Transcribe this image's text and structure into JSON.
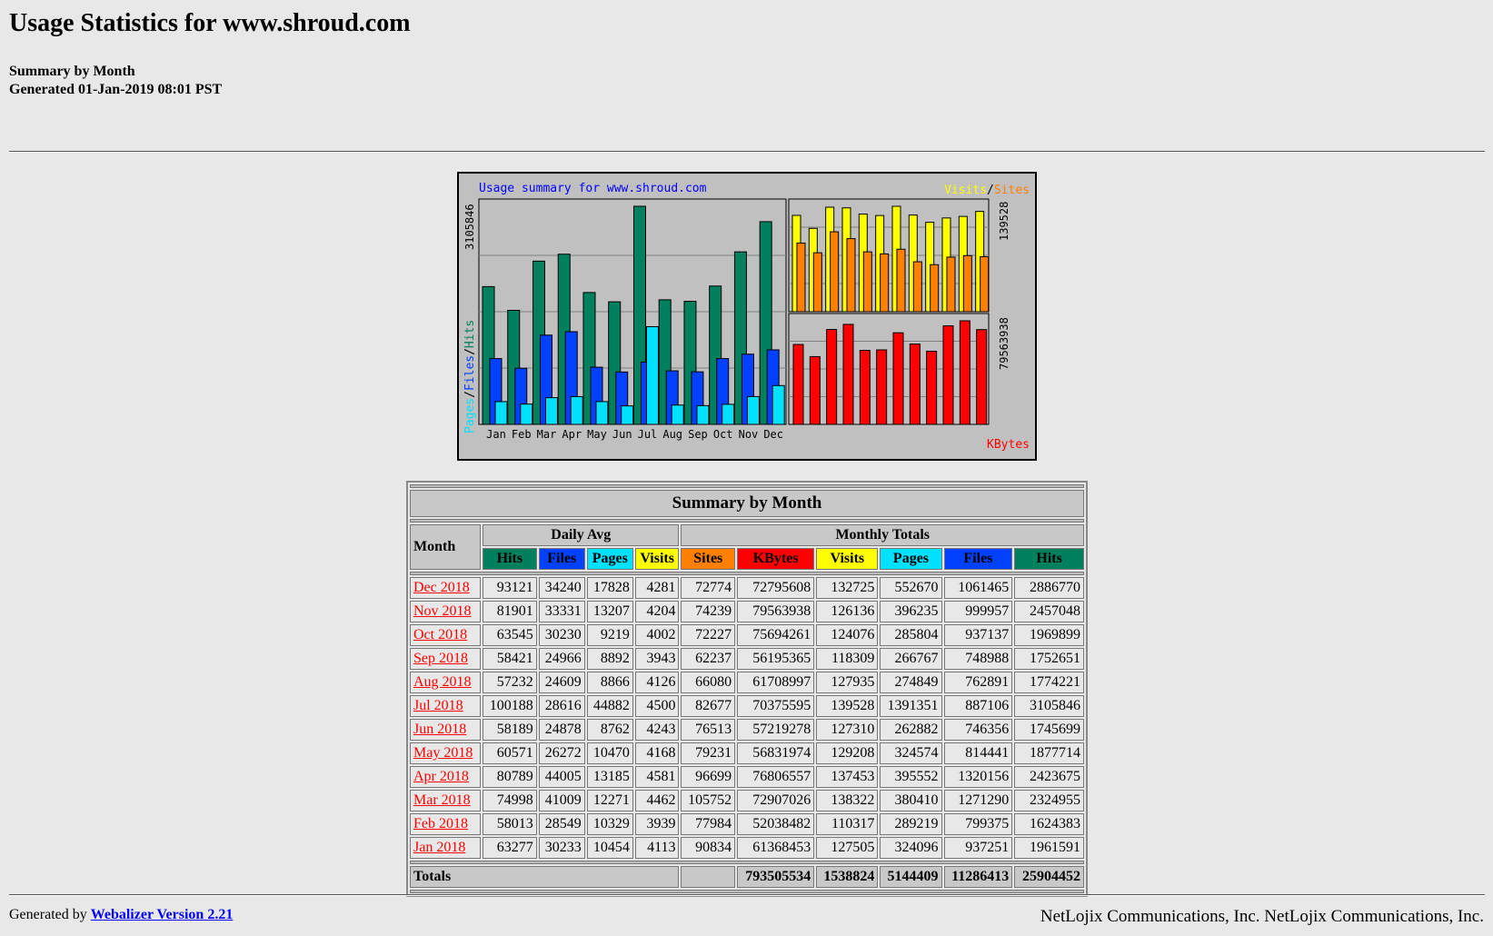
{
  "page": {
    "title": "Usage Statistics for www.shroud.com",
    "subtitle": "Summary by Month",
    "generated": "Generated 01-Jan-2019 08:01 PST"
  },
  "colors": {
    "hits": "#00805c",
    "files": "#0040ff",
    "pages": "#00e0ff",
    "visits": "#ffff00",
    "sites": "#ff8000",
    "kbytes": "#ff0000",
    "background": "#e8e8e8",
    "chart_bg": "#c0c0c0"
  },
  "chart": {
    "title": "Usage summary for www.shroud.com",
    "left_axis_max": "3105846",
    "left_axis_legend": {
      "pages": "Pages",
      "files": "Files",
      "hits": "Hits",
      "sep": "/"
    },
    "right_top_max": "139528",
    "right_top_legend": {
      "visits": "Visits",
      "sites": "Sites",
      "sep": "/"
    },
    "right_bottom_max": "79563938",
    "right_bottom_legend": "KBytes",
    "months": [
      "Jan",
      "Feb",
      "Mar",
      "Apr",
      "May",
      "Jun",
      "Jul",
      "Aug",
      "Sep",
      "Oct",
      "Nov",
      "Dec"
    ]
  },
  "chart_data": {
    "type": "bar",
    "title": "Usage summary for www.shroud.com",
    "categories": [
      "Jan",
      "Feb",
      "Mar",
      "Apr",
      "May",
      "Jun",
      "Jul",
      "Aug",
      "Sep",
      "Oct",
      "Nov",
      "Dec"
    ],
    "series": [
      {
        "name": "Hits",
        "axis": "left",
        "values": [
          1961591,
          1624383,
          2324955,
          2423675,
          1877714,
          1745699,
          3105846,
          1774221,
          1752651,
          1969899,
          2457048,
          2886770
        ]
      },
      {
        "name": "Files",
        "axis": "left",
        "values": [
          937251,
          799375,
          1271290,
          1320156,
          814441,
          746356,
          887106,
          762891,
          748988,
          937137,
          999957,
          1061465
        ]
      },
      {
        "name": "Pages",
        "axis": "left",
        "values": [
          324096,
          289219,
          380410,
          395552,
          324574,
          262882,
          1391351,
          274849,
          266767,
          285804,
          396235,
          552670
        ]
      },
      {
        "name": "Visits",
        "axis": "right-top",
        "values": [
          127505,
          110317,
          138322,
          137453,
          129208,
          127310,
          139528,
          127935,
          118309,
          124076,
          126136,
          132725
        ]
      },
      {
        "name": "Sites",
        "axis": "right-top",
        "values": [
          90834,
          77984,
          105752,
          96699,
          79231,
          76513,
          82677,
          66080,
          62237,
          72227,
          74239,
          72774
        ]
      },
      {
        "name": "KBytes",
        "axis": "right-bottom",
        "values": [
          61368453,
          52038482,
          72907026,
          76806557,
          56831974,
          57219278,
          70375595,
          61708997,
          56195365,
          75694261,
          79563938,
          72795608
        ]
      }
    ],
    "ylim_left": [
      0,
      3105846
    ],
    "ylim_right_top": [
      0,
      139528
    ],
    "ylim_right_bottom": [
      0,
      79563938
    ]
  },
  "table": {
    "title": "Summary by Month",
    "month_header": "Month",
    "daily_avg_header": "Daily Avg",
    "monthly_totals_header": "Monthly Totals",
    "daily_cols": [
      "Hits",
      "Files",
      "Pages",
      "Visits"
    ],
    "monthly_cols": [
      "Sites",
      "KBytes",
      "Visits",
      "Pages",
      "Files",
      "Hits"
    ],
    "rows": [
      {
        "month": "Dec 2018",
        "d_hits": "93121",
        "d_files": "34240",
        "d_pages": "17828",
        "d_visits": "4281",
        "sites": "72774",
        "kbytes": "72795608",
        "visits": "132725",
        "pages": "552670",
        "files": "1061465",
        "hits": "2886770"
      },
      {
        "month": "Nov 2018",
        "d_hits": "81901",
        "d_files": "33331",
        "d_pages": "13207",
        "d_visits": "4204",
        "sites": "74239",
        "kbytes": "79563938",
        "visits": "126136",
        "pages": "396235",
        "files": "999957",
        "hits": "2457048"
      },
      {
        "month": "Oct 2018",
        "d_hits": "63545",
        "d_files": "30230",
        "d_pages": "9219",
        "d_visits": "4002",
        "sites": "72227",
        "kbytes": "75694261",
        "visits": "124076",
        "pages": "285804",
        "files": "937137",
        "hits": "1969899"
      },
      {
        "month": "Sep 2018",
        "d_hits": "58421",
        "d_files": "24966",
        "d_pages": "8892",
        "d_visits": "3943",
        "sites": "62237",
        "kbytes": "56195365",
        "visits": "118309",
        "pages": "266767",
        "files": "748988",
        "hits": "1752651"
      },
      {
        "month": "Aug 2018",
        "d_hits": "57232",
        "d_files": "24609",
        "d_pages": "8866",
        "d_visits": "4126",
        "sites": "66080",
        "kbytes": "61708997",
        "visits": "127935",
        "pages": "274849",
        "files": "762891",
        "hits": "1774221"
      },
      {
        "month": "Jul 2018",
        "d_hits": "100188",
        "d_files": "28616",
        "d_pages": "44882",
        "d_visits": "4500",
        "sites": "82677",
        "kbytes": "70375595",
        "visits": "139528",
        "pages": "1391351",
        "files": "887106",
        "hits": "3105846"
      },
      {
        "month": "Jun 2018",
        "d_hits": "58189",
        "d_files": "24878",
        "d_pages": "8762",
        "d_visits": "4243",
        "sites": "76513",
        "kbytes": "57219278",
        "visits": "127310",
        "pages": "262882",
        "files": "746356",
        "hits": "1745699"
      },
      {
        "month": "May 2018",
        "d_hits": "60571",
        "d_files": "26272",
        "d_pages": "10470",
        "d_visits": "4168",
        "sites": "79231",
        "kbytes": "56831974",
        "visits": "129208",
        "pages": "324574",
        "files": "814441",
        "hits": "1877714"
      },
      {
        "month": "Apr 2018",
        "d_hits": "80789",
        "d_files": "44005",
        "d_pages": "13185",
        "d_visits": "4581",
        "sites": "96699",
        "kbytes": "76806557",
        "visits": "137453",
        "pages": "395552",
        "files": "1320156",
        "hits": "2423675"
      },
      {
        "month": "Mar 2018",
        "d_hits": "74998",
        "d_files": "41009",
        "d_pages": "12271",
        "d_visits": "4462",
        "sites": "105752",
        "kbytes": "72907026",
        "visits": "138322",
        "pages": "380410",
        "files": "1271290",
        "hits": "2324955"
      },
      {
        "month": "Feb 2018",
        "d_hits": "58013",
        "d_files": "28549",
        "d_pages": "10329",
        "d_visits": "3939",
        "sites": "77984",
        "kbytes": "52038482",
        "visits": "110317",
        "pages": "289219",
        "files": "799375",
        "hits": "1624383"
      },
      {
        "month": "Jan 2018",
        "d_hits": "63277",
        "d_files": "30233",
        "d_pages": "10454",
        "d_visits": "4113",
        "sites": "90834",
        "kbytes": "61368453",
        "visits": "127505",
        "pages": "324096",
        "files": "937251",
        "hits": "1961591"
      }
    ],
    "totals": {
      "label": "Totals",
      "kbytes": "793505534",
      "visits": "1538824",
      "pages": "5144409",
      "files": "11286413",
      "hits": "25904452"
    }
  },
  "footer": {
    "generated_by": "Generated by",
    "link_text": "Webalizer Version 2.21",
    "company": "NetLojix Communications, Inc. NetLojix Communications, Inc."
  }
}
